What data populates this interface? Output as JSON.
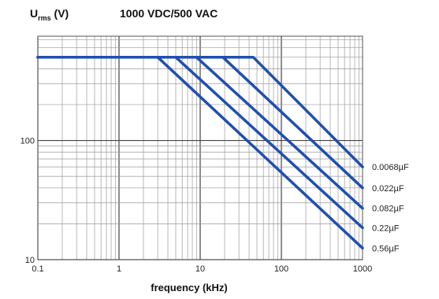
{
  "chart_data": {
    "type": "line",
    "title": "1000 VDC/500 VAC",
    "ylabel_main": "U",
    "ylabel_sub": "rms",
    "ylabel_unit": " (V)",
    "xlabel": "frequency (kHz)",
    "x_scale": "log",
    "y_scale": "log",
    "xlim": [
      0.1,
      1000
    ],
    "ylim": [
      10,
      750
    ],
    "grid": true,
    "x_ticks": [
      {
        "value": 0.1,
        "label": "0.1"
      },
      {
        "value": 1,
        "label": "1"
      },
      {
        "value": 10,
        "label": "10"
      },
      {
        "value": 100,
        "label": "100"
      },
      {
        "value": 1000,
        "label": "1000"
      }
    ],
    "y_ticks": [
      {
        "value": 10,
        "label": "10"
      },
      {
        "value": 100,
        "label": "100"
      }
    ],
    "line_color": "#1f4fb0",
    "series": [
      {
        "name": "0.0068µF",
        "points": [
          [
            0.1,
            500
          ],
          [
            45,
            500
          ],
          [
            1000,
            60
          ]
        ]
      },
      {
        "name": "0.022µF",
        "points": [
          [
            0.1,
            500
          ],
          [
            19,
            500
          ],
          [
            1000,
            40
          ]
        ]
      },
      {
        "name": "0.082µF",
        "points": [
          [
            0.1,
            500
          ],
          [
            9,
            500
          ],
          [
            1000,
            27
          ]
        ]
      },
      {
        "name": "0.22µF",
        "points": [
          [
            0.1,
            500
          ],
          [
            5,
            500
          ],
          [
            1000,
            18.5
          ]
        ]
      },
      {
        "name": "0.56µF",
        "points": [
          [
            0.1,
            500
          ],
          [
            3,
            500
          ],
          [
            1000,
            12.5
          ]
        ]
      }
    ]
  }
}
